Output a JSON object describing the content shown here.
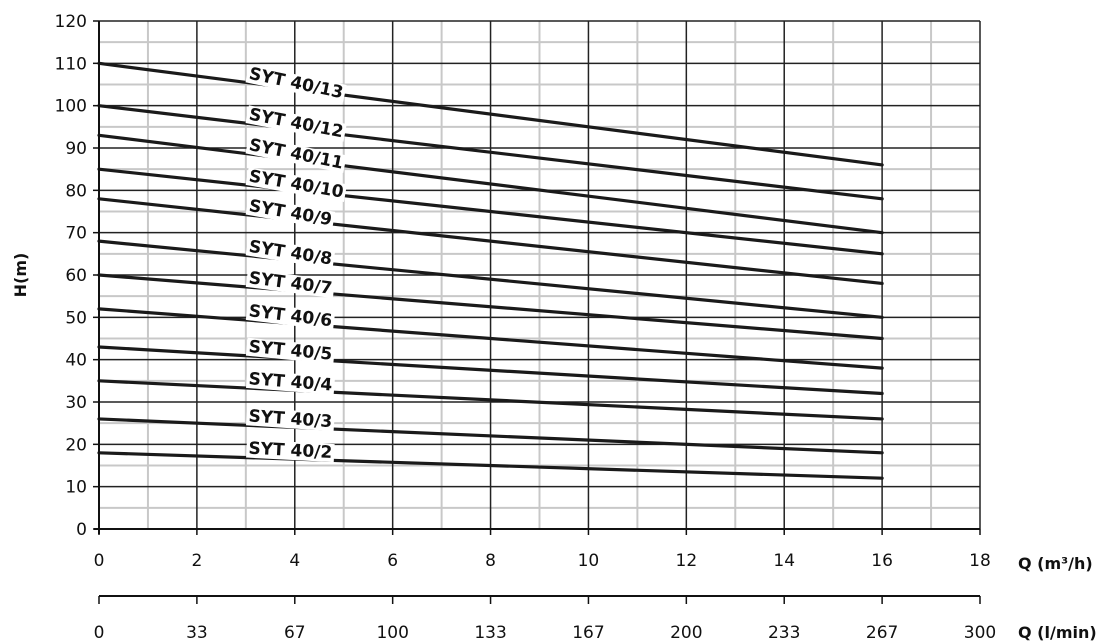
{
  "chart_data": {
    "type": "line",
    "ylabel": "H(m)",
    "xlabel": "Q (m³/h)",
    "x2label": "Q (l/min)",
    "xlim": [
      0,
      18
    ],
    "ylim": [
      0,
      120
    ],
    "x_ticks": [
      "0",
      "2",
      "4",
      "6",
      "8",
      "10",
      "12",
      "14",
      "16",
      "18"
    ],
    "x2_ticks": [
      "0",
      "33",
      "67",
      "100",
      "133",
      "167",
      "200",
      "233",
      "267",
      "300"
    ],
    "y_ticks": [
      "0",
      "10",
      "20",
      "30",
      "40",
      "50",
      "60",
      "70",
      "80",
      "90",
      "100",
      "110",
      "120"
    ],
    "grid": true,
    "series": [
      {
        "name": "SYT 40/13",
        "x": [
          0,
          16
        ],
        "values": [
          110,
          86
        ]
      },
      {
        "name": "SYT 40/12",
        "x": [
          0,
          16
        ],
        "values": [
          100,
          78
        ]
      },
      {
        "name": "SYT 40/11",
        "x": [
          0,
          16
        ],
        "values": [
          93,
          70
        ]
      },
      {
        "name": "SYT 40/10",
        "x": [
          0,
          16
        ],
        "values": [
          85,
          65
        ]
      },
      {
        "name": "SYT 40/9",
        "x": [
          0,
          16
        ],
        "values": [
          78,
          58
        ]
      },
      {
        "name": "SYT 40/8",
        "x": [
          0,
          16
        ],
        "values": [
          68,
          50
        ]
      },
      {
        "name": "SYT 40/7",
        "x": [
          0,
          16
        ],
        "values": [
          60,
          45
        ]
      },
      {
        "name": "SYT 40/6",
        "x": [
          0,
          16
        ],
        "values": [
          52,
          38
        ]
      },
      {
        "name": "SYT 40/5",
        "x": [
          0,
          16
        ],
        "values": [
          43,
          32
        ]
      },
      {
        "name": "SYT 40/4",
        "x": [
          0,
          16
        ],
        "values": [
          35,
          26
        ]
      },
      {
        "name": "SYT 40/3",
        "x": [
          0,
          16
        ],
        "values": [
          26,
          18
        ]
      },
      {
        "name": "SYT 40/2",
        "x": [
          0,
          16
        ],
        "values": [
          18,
          12
        ]
      }
    ]
  }
}
